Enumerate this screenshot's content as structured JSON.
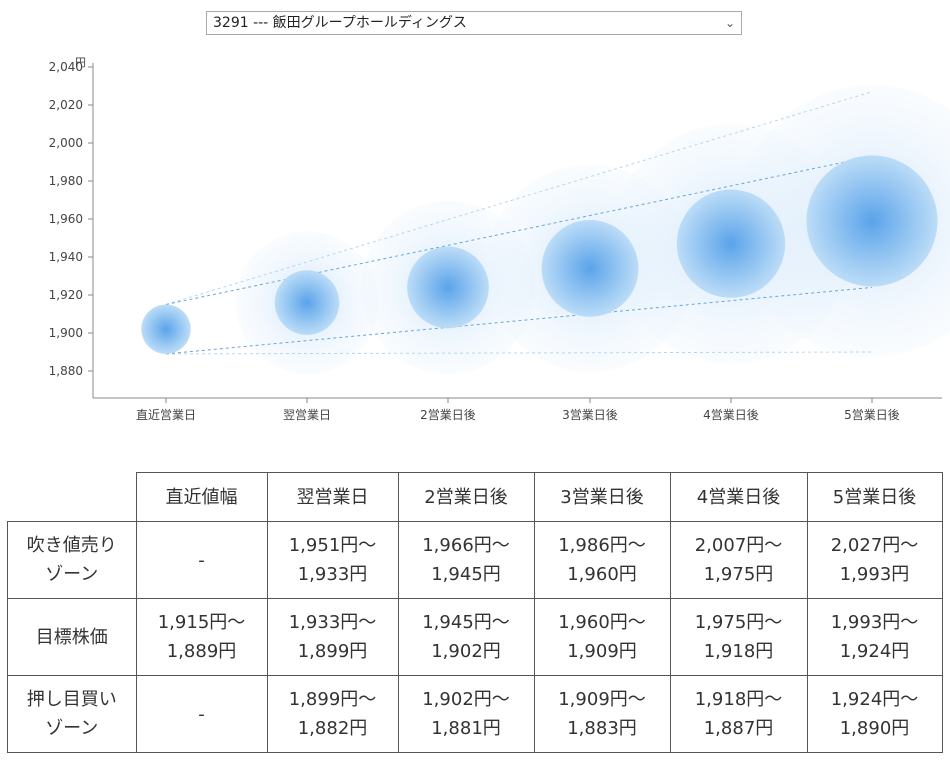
{
  "selector": {
    "value": "3291 --- 飯田グループホールディングス"
  },
  "chart_data": {
    "type": "scatter",
    "y_unit": "円",
    "categories": [
      "直近営業日",
      "翌営業日",
      "2営業日後",
      "3営業日後",
      "4営業日後",
      "5営業日後"
    ],
    "y_ticks": [
      "1,880",
      "1,900",
      "1,920",
      "1,940",
      "1,960",
      "1,980",
      "2,000",
      "2,020",
      "2,040"
    ],
    "ylim": [
      1870,
      2040
    ],
    "center": [
      1902,
      1916,
      1924,
      1934,
      1947,
      1959
    ],
    "target_upper": [
      1915,
      1933,
      1945,
      1960,
      1975,
      1993
    ],
    "target_lower": [
      1889,
      1899,
      1902,
      1909,
      1918,
      1924
    ],
    "outer_upper": [
      1915,
      1951,
      1966,
      1986,
      2007,
      2027
    ],
    "outer_lower": [
      1889,
      1882,
      1881,
      1883,
      1887,
      1890
    ],
    "colors": {
      "bubble": "#4a9ae8",
      "line_center": "#6aa6d8",
      "line_outer": "#b9d6ee",
      "axis": "#888888"
    }
  },
  "table": {
    "headers": [
      "",
      "直近値幅",
      "翌営業日",
      "2営業日後",
      "3営業日後",
      "4営業日後",
      "5営業日後"
    ],
    "rows": [
      {
        "label": [
          "吹き値売り",
          "ゾーン"
        ],
        "cells": [
          [
            "-"
          ],
          [
            "1,951円～",
            "1,933円"
          ],
          [
            "1,966円～",
            "1,945円"
          ],
          [
            "1,986円～",
            "1,960円"
          ],
          [
            "2,007円～",
            "1,975円"
          ],
          [
            "2,027円～",
            "1,993円"
          ]
        ]
      },
      {
        "label": [
          "目標株価"
        ],
        "cells": [
          [
            "1,915円～",
            "1,889円"
          ],
          [
            "1,933円～",
            "1,899円"
          ],
          [
            "1,945円～",
            "1,902円"
          ],
          [
            "1,960円～",
            "1,909円"
          ],
          [
            "1,975円～",
            "1,918円"
          ],
          [
            "1,993円～",
            "1,924円"
          ]
        ]
      },
      {
        "label": [
          "押し目買い",
          "ゾーン"
        ],
        "cells": [
          [
            "-"
          ],
          [
            "1,899円～",
            "1,882円"
          ],
          [
            "1,902円～",
            "1,881円"
          ],
          [
            "1,909円～",
            "1,883円"
          ],
          [
            "1,918円～",
            "1,887円"
          ],
          [
            "1,924円～",
            "1,890円"
          ]
        ]
      }
    ]
  }
}
